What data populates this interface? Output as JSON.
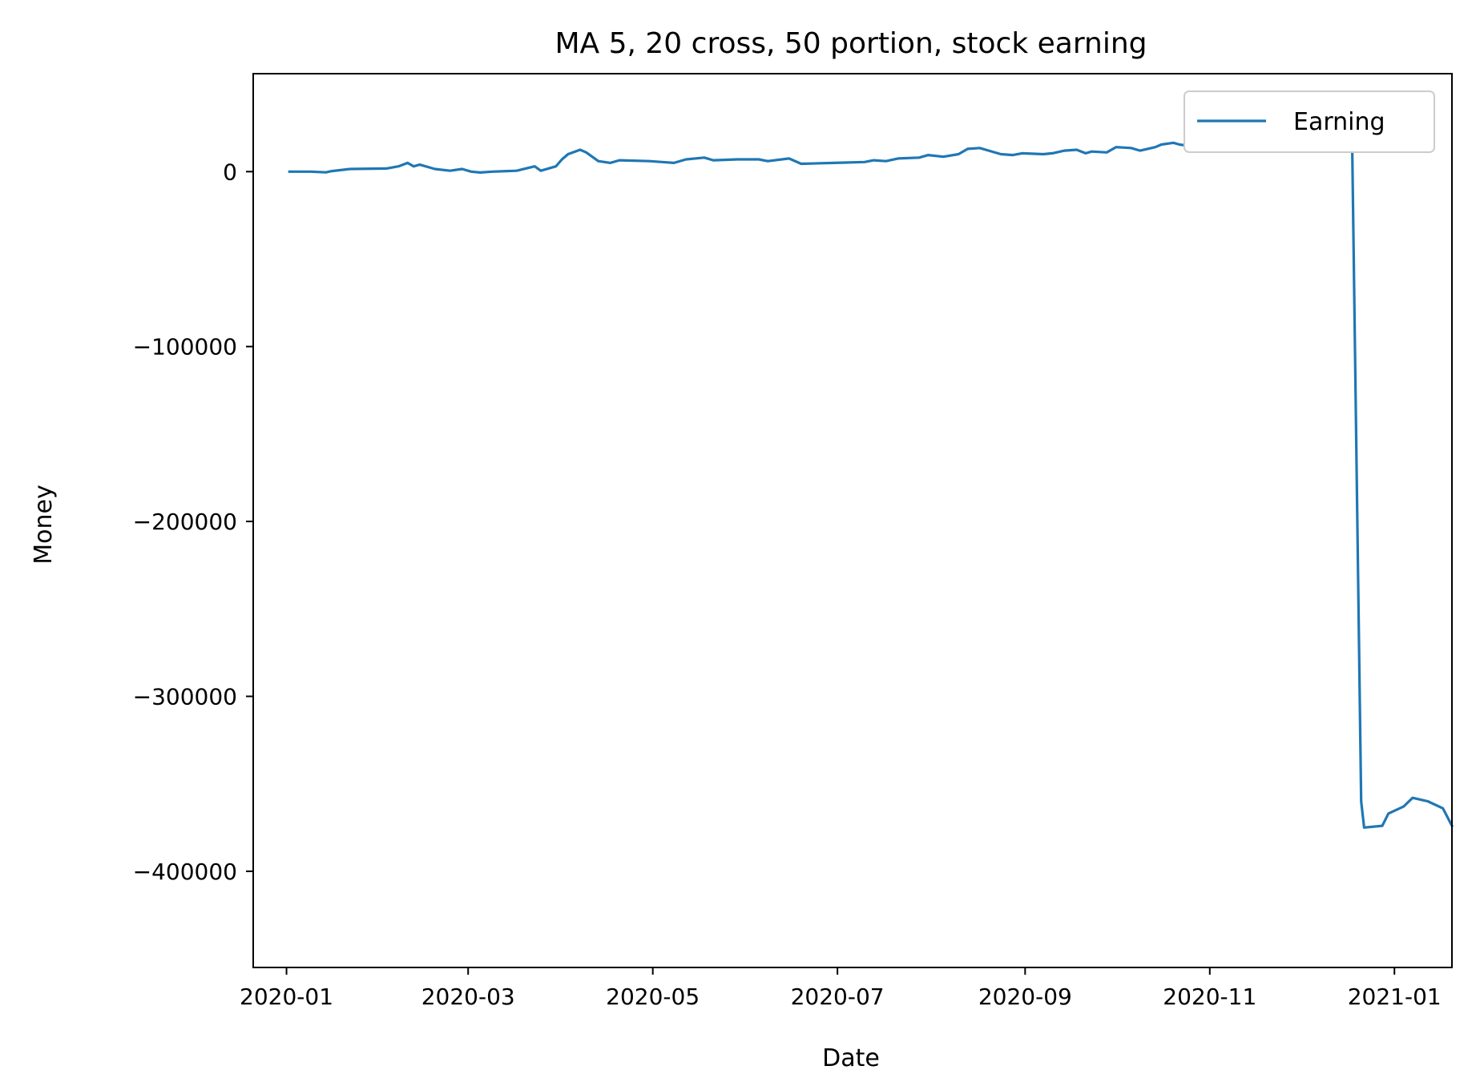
{
  "chart_data": {
    "type": "line",
    "title": "MA 5, 20 cross, 50 portion, stock earning",
    "xlabel": "Date",
    "ylabel": "Money",
    "x_ticks": [
      "2020-01",
      "2020-03",
      "2020-05",
      "2020-07",
      "2020-09",
      "2020-11",
      "2021-01"
    ],
    "y_ticks": [
      {
        "value": 0,
        "label": "0"
      },
      {
        "value": -100000,
        "label": "−100000"
      },
      {
        "value": -200000,
        "label": "−200000"
      },
      {
        "value": -300000,
        "label": "−300000"
      },
      {
        "value": -400000,
        "label": "−400000"
      }
    ],
    "xlim": [
      "2019-12-21",
      "2021-01-20"
    ],
    "ylim": [
      -455000,
      56000
    ],
    "grid": false,
    "legend": "top-right",
    "line_color": "#1f77b4",
    "series": [
      {
        "name": "Earning",
        "points": [
          [
            "2020-01-02",
            0
          ],
          [
            "2020-01-09",
            0
          ],
          [
            "2020-01-14",
            -400
          ],
          [
            "2020-01-16",
            300
          ],
          [
            "2020-01-22",
            1500
          ],
          [
            "2020-02-03",
            1800
          ],
          [
            "2020-02-07",
            3000
          ],
          [
            "2020-02-10",
            5000
          ],
          [
            "2020-02-12",
            3000
          ],
          [
            "2020-02-14",
            4000
          ],
          [
            "2020-02-19",
            1500
          ],
          [
            "2020-02-24",
            500
          ],
          [
            "2020-02-28",
            1500
          ],
          [
            "2020-03-02",
            0
          ],
          [
            "2020-03-05",
            -500
          ],
          [
            "2020-03-09",
            0
          ],
          [
            "2020-03-17",
            500
          ],
          [
            "2020-03-23",
            3000
          ],
          [
            "2020-03-25",
            500
          ],
          [
            "2020-03-30",
            3000
          ],
          [
            "2020-04-01",
            7000
          ],
          [
            "2020-04-03",
            10000
          ],
          [
            "2020-04-07",
            12500
          ],
          [
            "2020-04-09",
            11000
          ],
          [
            "2020-04-13",
            6000
          ],
          [
            "2020-04-17",
            5000
          ],
          [
            "2020-04-20",
            6500
          ],
          [
            "2020-04-30",
            6000
          ],
          [
            "2020-05-04",
            5500
          ],
          [
            "2020-05-08",
            5000
          ],
          [
            "2020-05-12",
            7000
          ],
          [
            "2020-05-18",
            8000
          ],
          [
            "2020-05-21",
            6500
          ],
          [
            "2020-05-29",
            7000
          ],
          [
            "2020-06-05",
            7000
          ],
          [
            "2020-06-08",
            6000
          ],
          [
            "2020-06-15",
            7500
          ],
          [
            "2020-06-19",
            4500
          ],
          [
            "2020-06-30",
            5000
          ],
          [
            "2020-07-10",
            5500
          ],
          [
            "2020-07-13",
            6500
          ],
          [
            "2020-07-17",
            6000
          ],
          [
            "2020-07-21",
            7500
          ],
          [
            "2020-07-28",
            8000
          ],
          [
            "2020-07-31",
            9500
          ],
          [
            "2020-08-05",
            8500
          ],
          [
            "2020-08-10",
            10000
          ],
          [
            "2020-08-13",
            13000
          ],
          [
            "2020-08-17",
            13500
          ],
          [
            "2020-08-20",
            12000
          ],
          [
            "2020-08-24",
            10000
          ],
          [
            "2020-08-28",
            9500
          ],
          [
            "2020-08-31",
            10500
          ],
          [
            "2020-09-07",
            10000
          ],
          [
            "2020-09-10",
            10500
          ],
          [
            "2020-09-14",
            12000
          ],
          [
            "2020-09-18",
            12500
          ],
          [
            "2020-09-21",
            10500
          ],
          [
            "2020-09-23",
            11500
          ],
          [
            "2020-09-28",
            11000
          ],
          [
            "2020-10-01",
            14000
          ],
          [
            "2020-10-06",
            13500
          ],
          [
            "2020-10-09",
            12000
          ],
          [
            "2020-10-14",
            14000
          ],
          [
            "2020-10-16",
            15500
          ],
          [
            "2020-10-20",
            16500
          ],
          [
            "2020-10-22",
            15500
          ],
          [
            "2020-10-26",
            14500
          ],
          [
            "2020-10-28",
            16500
          ],
          [
            "2020-11-03",
            18000
          ],
          [
            "2020-11-06",
            25000
          ],
          [
            "2020-11-10",
            28000
          ],
          [
            "2020-11-13",
            26000
          ],
          [
            "2020-11-17",
            22000
          ],
          [
            "2020-11-23",
            24000
          ],
          [
            "2020-11-27",
            28000
          ],
          [
            "2020-12-02",
            32000
          ],
          [
            "2020-12-07",
            28000
          ],
          [
            "2020-12-10",
            32000
          ],
          [
            "2020-12-15",
            27000
          ],
          [
            "2020-12-18",
            22000
          ],
          [
            "2020-12-21",
            -360000
          ],
          [
            "2020-12-22",
            -375000
          ],
          [
            "2020-12-28",
            -374000
          ],
          [
            "2020-12-30",
            -367000
          ],
          [
            "2021-01-04",
            -363000
          ],
          [
            "2021-01-07",
            -358000
          ],
          [
            "2021-01-12",
            -360000
          ],
          [
            "2021-01-17",
            -364000
          ],
          [
            "2021-01-20",
            -374000
          ]
        ]
      }
    ]
  }
}
